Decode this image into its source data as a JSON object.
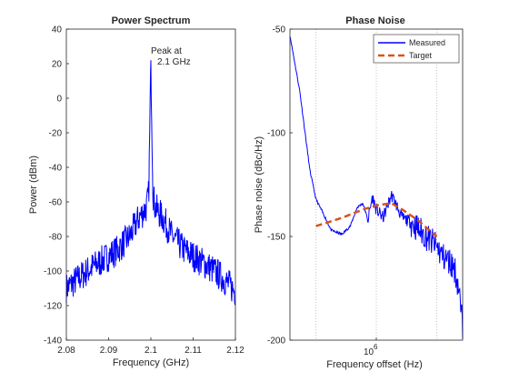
{
  "chart_data": [
    {
      "type": "line",
      "title": "Power Spectrum",
      "xlabel": "Frequency (GHz)",
      "ylabel": "Power (dBm)",
      "xlim": [
        2.08,
        2.12
      ],
      "ylim": [
        -140,
        40
      ],
      "xticks": [
        "2.08",
        "2.09",
        "2.1",
        "2.11",
        "2.12"
      ],
      "yticks": [
        "-140",
        "-120",
        "-100",
        "-80",
        "-60",
        "-40",
        "-20",
        "0",
        "20",
        "40"
      ],
      "grid": false,
      "color": "#0000ff",
      "annotation": {
        "lines": [
          "Peak at",
          "2.1 GHz"
        ],
        "x": 2.1,
        "y": 22
      },
      "series": [
        {
          "x": [
            2.08,
            2.083,
            2.086,
            2.089,
            2.092,
            2.095,
            2.097,
            2.099,
            2.0995,
            2.1,
            2.1005,
            2.101,
            2.103,
            2.105,
            2.108,
            2.111,
            2.114,
            2.117,
            2.12
          ],
          "values": [
            -110,
            -104,
            -98,
            -93,
            -88,
            -80,
            -70,
            -63,
            -55,
            22,
            -55,
            -63,
            -70,
            -80,
            -88,
            -93,
            -98,
            -104,
            -112
          ]
        }
      ]
    },
    {
      "type": "line",
      "title": "Phase Noise",
      "xlabel": "Frequency offset (Hz)",
      "ylabel": "Phase noise (dBc/Hz)",
      "xscale": "log",
      "xlim": [
        100000,
        10000000
      ],
      "ylim": [
        -200,
        -50
      ],
      "yticks": [
        "-200",
        "-150",
        "-100",
        "-50"
      ],
      "xtick_labels": [
        "10",
        "6"
      ],
      "legend": "top-right",
      "grid": "vertical-dotted",
      "series": [
        {
          "name": "Measured",
          "color": "#0000ff",
          "x": [
            100000,
            130000,
            170000,
            200000,
            250000,
            300000,
            400000,
            500000,
            600000,
            700000,
            800000,
            900000,
            1000000,
            1200000,
            1500000,
            2000000,
            2500000,
            3000000,
            4000000,
            5000000,
            6000000,
            7000000,
            8000000,
            9000000,
            10000000
          ],
          "values": [
            -53,
            -80,
            -118,
            -132,
            -140,
            -147,
            -149,
            -145,
            -136,
            -134,
            -142,
            -131,
            -137,
            -141,
            -130,
            -141,
            -143,
            -146,
            -151,
            -155,
            -160,
            -162,
            -165,
            -175,
            -194
          ]
        },
        {
          "name": "Target",
          "color": "#d95319",
          "dash": true,
          "x": [
            200000,
            400000,
            700000,
            1000000,
            1500000,
            2000000,
            3000000,
            5000000
          ],
          "values": [
            -145,
            -141,
            -137,
            -135,
            -134,
            -137,
            -142,
            -150
          ]
        }
      ]
    }
  ]
}
